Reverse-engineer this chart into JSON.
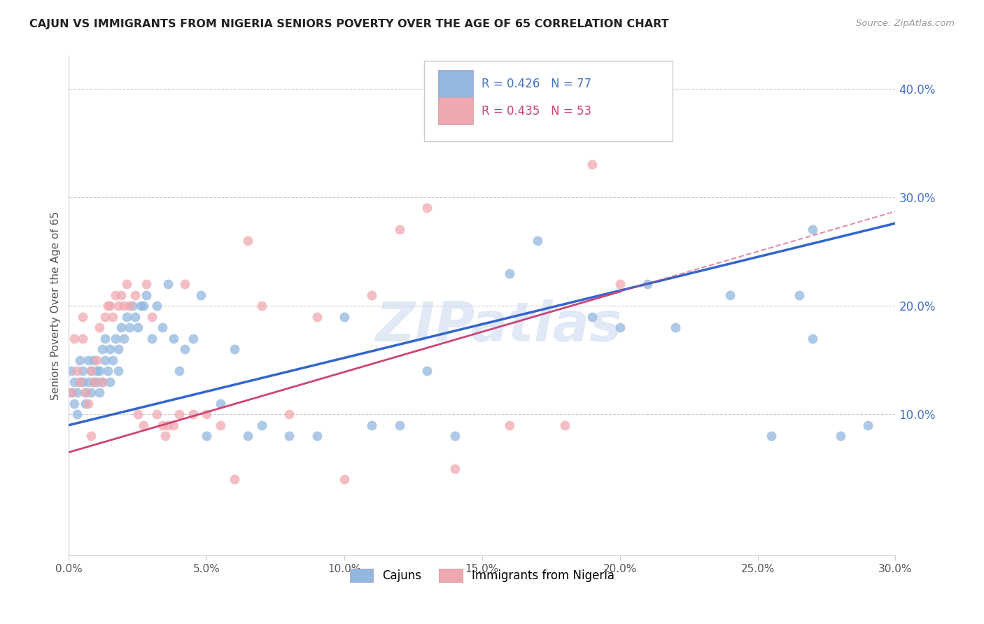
{
  "title": "CAJUN VS IMMIGRANTS FROM NIGERIA SENIORS POVERTY OVER THE AGE OF 65 CORRELATION CHART",
  "source": "Source: ZipAtlas.com",
  "ylabel": "Seniors Poverty Over the Age of 65",
  "cajun_R": 0.426,
  "cajun_N": 77,
  "nigeria_R": 0.435,
  "nigeria_N": 53,
  "cajun_color": "#92b8e0",
  "nigeria_color": "#f0a8b0",
  "cajun_line_color": "#3366cc",
  "nigeria_line_color": "#cc4477",
  "watermark": "ZIPatlas",
  "xlim": [
    0.0,
    0.3
  ],
  "ylim": [
    -0.03,
    0.43
  ],
  "ytick_vals": [
    0.1,
    0.2,
    0.3,
    0.4
  ],
  "xtick_vals": [
    0.0,
    0.05,
    0.1,
    0.15,
    0.2,
    0.25,
    0.3
  ],
  "cajun_x": [
    0.001,
    0.001,
    0.002,
    0.002,
    0.003,
    0.003,
    0.004,
    0.004,
    0.005,
    0.005,
    0.006,
    0.006,
    0.007,
    0.007,
    0.008,
    0.008,
    0.009,
    0.009,
    0.01,
    0.01,
    0.011,
    0.011,
    0.012,
    0.012,
    0.013,
    0.013,
    0.014,
    0.015,
    0.015,
    0.016,
    0.017,
    0.018,
    0.018,
    0.019,
    0.02,
    0.021,
    0.022,
    0.023,
    0.024,
    0.025,
    0.026,
    0.027,
    0.028,
    0.03,
    0.032,
    0.034,
    0.036,
    0.038,
    0.04,
    0.042,
    0.045,
    0.048,
    0.05,
    0.055,
    0.06,
    0.065,
    0.07,
    0.08,
    0.09,
    0.1,
    0.11,
    0.12,
    0.13,
    0.14,
    0.16,
    0.17,
    0.19,
    0.2,
    0.21,
    0.22,
    0.24,
    0.255,
    0.265,
    0.27,
    0.28,
    0.29,
    0.27
  ],
  "cajun_y": [
    0.12,
    0.14,
    0.13,
    0.11,
    0.12,
    0.1,
    0.13,
    0.15,
    0.14,
    0.13,
    0.12,
    0.11,
    0.13,
    0.15,
    0.12,
    0.14,
    0.13,
    0.15,
    0.14,
    0.13,
    0.12,
    0.14,
    0.16,
    0.13,
    0.15,
    0.17,
    0.14,
    0.16,
    0.13,
    0.15,
    0.17,
    0.16,
    0.14,
    0.18,
    0.17,
    0.19,
    0.18,
    0.2,
    0.19,
    0.18,
    0.2,
    0.2,
    0.21,
    0.17,
    0.2,
    0.18,
    0.22,
    0.17,
    0.14,
    0.16,
    0.17,
    0.21,
    0.08,
    0.11,
    0.16,
    0.08,
    0.09,
    0.08,
    0.08,
    0.19,
    0.09,
    0.09,
    0.14,
    0.08,
    0.23,
    0.26,
    0.19,
    0.18,
    0.22,
    0.18,
    0.21,
    0.08,
    0.21,
    0.17,
    0.08,
    0.09,
    0.27
  ],
  "nigeria_x": [
    0.001,
    0.002,
    0.003,
    0.004,
    0.005,
    0.006,
    0.007,
    0.008,
    0.009,
    0.01,
    0.011,
    0.012,
    0.013,
    0.014,
    0.015,
    0.016,
    0.017,
    0.018,
    0.019,
    0.02,
    0.021,
    0.022,
    0.024,
    0.025,
    0.027,
    0.028,
    0.03,
    0.032,
    0.034,
    0.036,
    0.038,
    0.04,
    0.042,
    0.045,
    0.05,
    0.055,
    0.06,
    0.065,
    0.07,
    0.08,
    0.09,
    0.1,
    0.11,
    0.12,
    0.13,
    0.14,
    0.16,
    0.18,
    0.19,
    0.2,
    0.005,
    0.008,
    0.035
  ],
  "nigeria_y": [
    0.12,
    0.17,
    0.14,
    0.13,
    0.19,
    0.12,
    0.11,
    0.14,
    0.13,
    0.15,
    0.18,
    0.13,
    0.19,
    0.2,
    0.2,
    0.19,
    0.21,
    0.2,
    0.21,
    0.2,
    0.22,
    0.2,
    0.21,
    0.1,
    0.09,
    0.22,
    0.19,
    0.1,
    0.09,
    0.09,
    0.09,
    0.1,
    0.22,
    0.1,
    0.1,
    0.09,
    0.04,
    0.26,
    0.2,
    0.1,
    0.19,
    0.04,
    0.21,
    0.27,
    0.29,
    0.05,
    0.09,
    0.09,
    0.33,
    0.22,
    0.17,
    0.08,
    0.08
  ],
  "cajun_line_slope": 0.62,
  "cajun_line_intercept": 0.09,
  "nigeria_line_slope": 0.74,
  "nigeria_line_intercept": 0.065
}
